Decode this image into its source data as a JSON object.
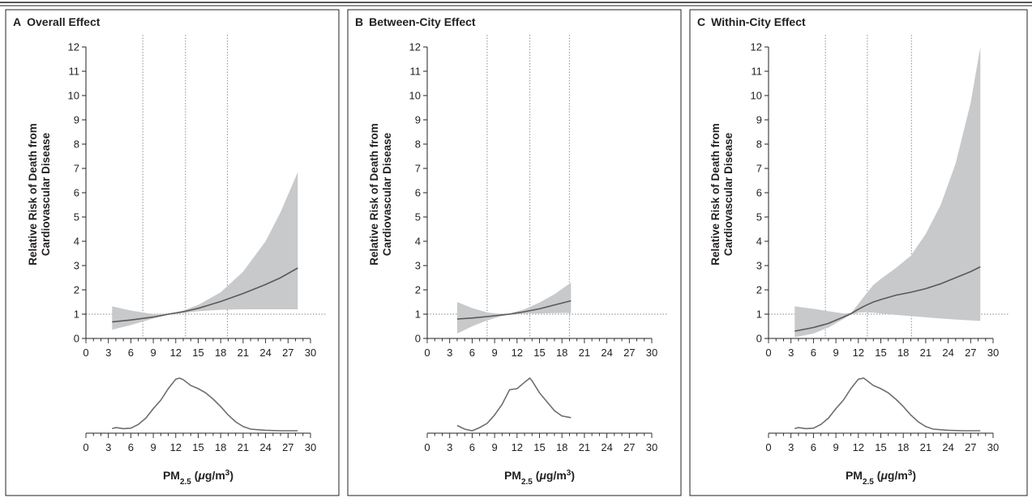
{
  "chart_data": [
    {
      "type": "line",
      "panel_letter": "A",
      "title": "Overall Effect",
      "ylabel_line1": "Relative Risk of Death from",
      "ylabel_line2": "Cardiovascular Disease",
      "xlabel": {
        "main": "PM",
        "sub": "2.5",
        "units_open": " (",
        "mu": "μ",
        "units_mid": "g/m",
        "sup": "3",
        "units_close": ")"
      },
      "xlim": [
        0,
        30
      ],
      "ylim": [
        0,
        12
      ],
      "xticks": [
        "0",
        "3",
        "6",
        "9",
        "12",
        "15",
        "18",
        "21",
        "24",
        "27",
        "30"
      ],
      "yticks": [
        "0",
        "1",
        "2",
        "3",
        "4",
        "5",
        "6",
        "7",
        "8",
        "9",
        "10",
        "11",
        "12"
      ],
      "reference_lines_x": [
        7.6,
        13.3,
        18.9
      ],
      "reference_line_y": 1,
      "series": [
        {
          "x": [
            3.5,
            6,
            9,
            11,
            13,
            15,
            18,
            21,
            24,
            26,
            28.3
          ],
          "y": [
            0.68,
            0.76,
            0.88,
            1.0,
            1.1,
            1.24,
            1.52,
            1.85,
            2.22,
            2.5,
            2.9
          ],
          "lower": [
            0.36,
            0.55,
            0.82,
            0.97,
            1.05,
            1.12,
            1.18,
            1.2,
            1.2,
            1.2,
            1.2
          ],
          "upper": [
            1.32,
            1.15,
            1.0,
            1.0,
            1.15,
            1.38,
            1.9,
            2.75,
            4.0,
            5.2,
            6.85
          ]
        }
      ],
      "distribution": {
        "x": [
          3.5,
          4,
          5,
          6,
          7,
          8,
          9,
          10,
          11,
          12,
          12.5,
          13,
          14,
          15,
          16,
          17,
          18,
          19,
          20,
          21,
          22,
          24,
          26,
          28.3
        ],
        "y": [
          0.04,
          0.06,
          0.04,
          0.05,
          0.12,
          0.24,
          0.42,
          0.58,
          0.8,
          0.98,
          1.0,
          0.97,
          0.86,
          0.8,
          0.72,
          0.6,
          0.46,
          0.3,
          0.17,
          0.08,
          0.03,
          0.01,
          0.0,
          0.0
        ]
      }
    },
    {
      "type": "line",
      "panel_letter": "B",
      "title": "Between-City Effect",
      "ylabel_line1": "Relative Risk of Death from",
      "ylabel_line2": "Cardiovascular Disease",
      "xlabel": {
        "main": "PM",
        "sub": "2.5",
        "units_open": " (",
        "mu": "μ",
        "units_mid": "g/m",
        "sup": "3",
        "units_close": ")"
      },
      "xlim": [
        0,
        30
      ],
      "ylim": [
        0,
        12
      ],
      "xticks": [
        "0",
        "3",
        "6",
        "9",
        "12",
        "15",
        "18",
        "21",
        "24",
        "27",
        "30"
      ],
      "yticks": [
        "0",
        "1",
        "2",
        "3",
        "4",
        "5",
        "6",
        "7",
        "8",
        "9",
        "10",
        "11",
        "12"
      ],
      "reference_lines_x": [
        8,
        13.7,
        19
      ],
      "reference_line_y": 1,
      "series": [
        {
          "x": [
            4,
            6,
            8,
            10,
            11,
            13,
            15,
            17,
            19.2
          ],
          "y": [
            0.8,
            0.84,
            0.9,
            0.97,
            1.0,
            1.1,
            1.22,
            1.38,
            1.55
          ],
          "lower": [
            0.2,
            0.5,
            0.74,
            0.93,
            0.98,
            1.02,
            1.03,
            1.04,
            1.05
          ],
          "upper": [
            1.5,
            1.25,
            1.07,
            1.0,
            1.03,
            1.2,
            1.48,
            1.82,
            2.3
          ]
        }
      ],
      "distribution": {
        "x": [
          4,
          5,
          6,
          7,
          8,
          9,
          10,
          11,
          12,
          13,
          13.7,
          14,
          15,
          16,
          17,
          18,
          19.2
        ],
        "y": [
          0.1,
          0.03,
          0.0,
          0.06,
          0.14,
          0.3,
          0.5,
          0.78,
          0.8,
          0.92,
          1.0,
          0.95,
          0.72,
          0.55,
          0.38,
          0.28,
          0.25
        ]
      }
    },
    {
      "type": "line",
      "panel_letter": "C",
      "title": "Within-City Effect",
      "ylabel_line1": "Relative Risk of Death from",
      "ylabel_line2": "Cardiovascular Disease",
      "xlabel": {
        "main": "PM",
        "sub": "2.5",
        "units_open": " (",
        "mu": "μ",
        "units_mid": "g/m",
        "sup": "3",
        "units_close": ")"
      },
      "xlim": [
        0,
        30
      ],
      "ylim": [
        0,
        12
      ],
      "xticks": [
        "0",
        "3",
        "6",
        "9",
        "12",
        "15",
        "18",
        "21",
        "24",
        "27",
        "30"
      ],
      "yticks": [
        "0",
        "1",
        "2",
        "3",
        "4",
        "5",
        "6",
        "7",
        "8",
        "9",
        "10",
        "11",
        "12"
      ],
      "reference_lines_x": [
        7.6,
        13.2,
        19.1
      ],
      "reference_line_y": 1,
      "series": [
        {
          "x": [
            3.5,
            6,
            8,
            10,
            11,
            12,
            13,
            14,
            15,
            17,
            19,
            21,
            23,
            25,
            27,
            28.3
          ],
          "y": [
            0.3,
            0.45,
            0.62,
            0.88,
            1.02,
            1.2,
            1.36,
            1.5,
            1.6,
            1.78,
            1.9,
            2.05,
            2.25,
            2.5,
            2.75,
            2.95
          ],
          "lower": [
            0.05,
            0.2,
            0.45,
            0.8,
            0.98,
            1.06,
            1.08,
            1.06,
            1.03,
            0.97,
            0.92,
            0.87,
            0.82,
            0.78,
            0.74,
            0.72
          ],
          "upper": [
            1.32,
            1.22,
            1.12,
            1.03,
            1.04,
            1.42,
            1.82,
            2.2,
            2.45,
            2.9,
            3.4,
            4.3,
            5.5,
            7.2,
            9.7,
            12.0
          ]
        }
      ],
      "distribution": {
        "x": [
          3.5,
          4,
          5,
          6,
          7,
          8,
          9,
          10,
          11,
          12,
          12.7,
          13,
          14,
          15,
          16,
          17,
          18,
          19,
          20,
          21,
          22,
          24,
          26,
          28.3
        ],
        "y": [
          0.04,
          0.06,
          0.04,
          0.05,
          0.12,
          0.24,
          0.42,
          0.58,
          0.8,
          0.98,
          1.0,
          0.97,
          0.86,
          0.8,
          0.72,
          0.6,
          0.46,
          0.3,
          0.17,
          0.08,
          0.03,
          0.01,
          0.0,
          0.0
        ]
      }
    }
  ]
}
